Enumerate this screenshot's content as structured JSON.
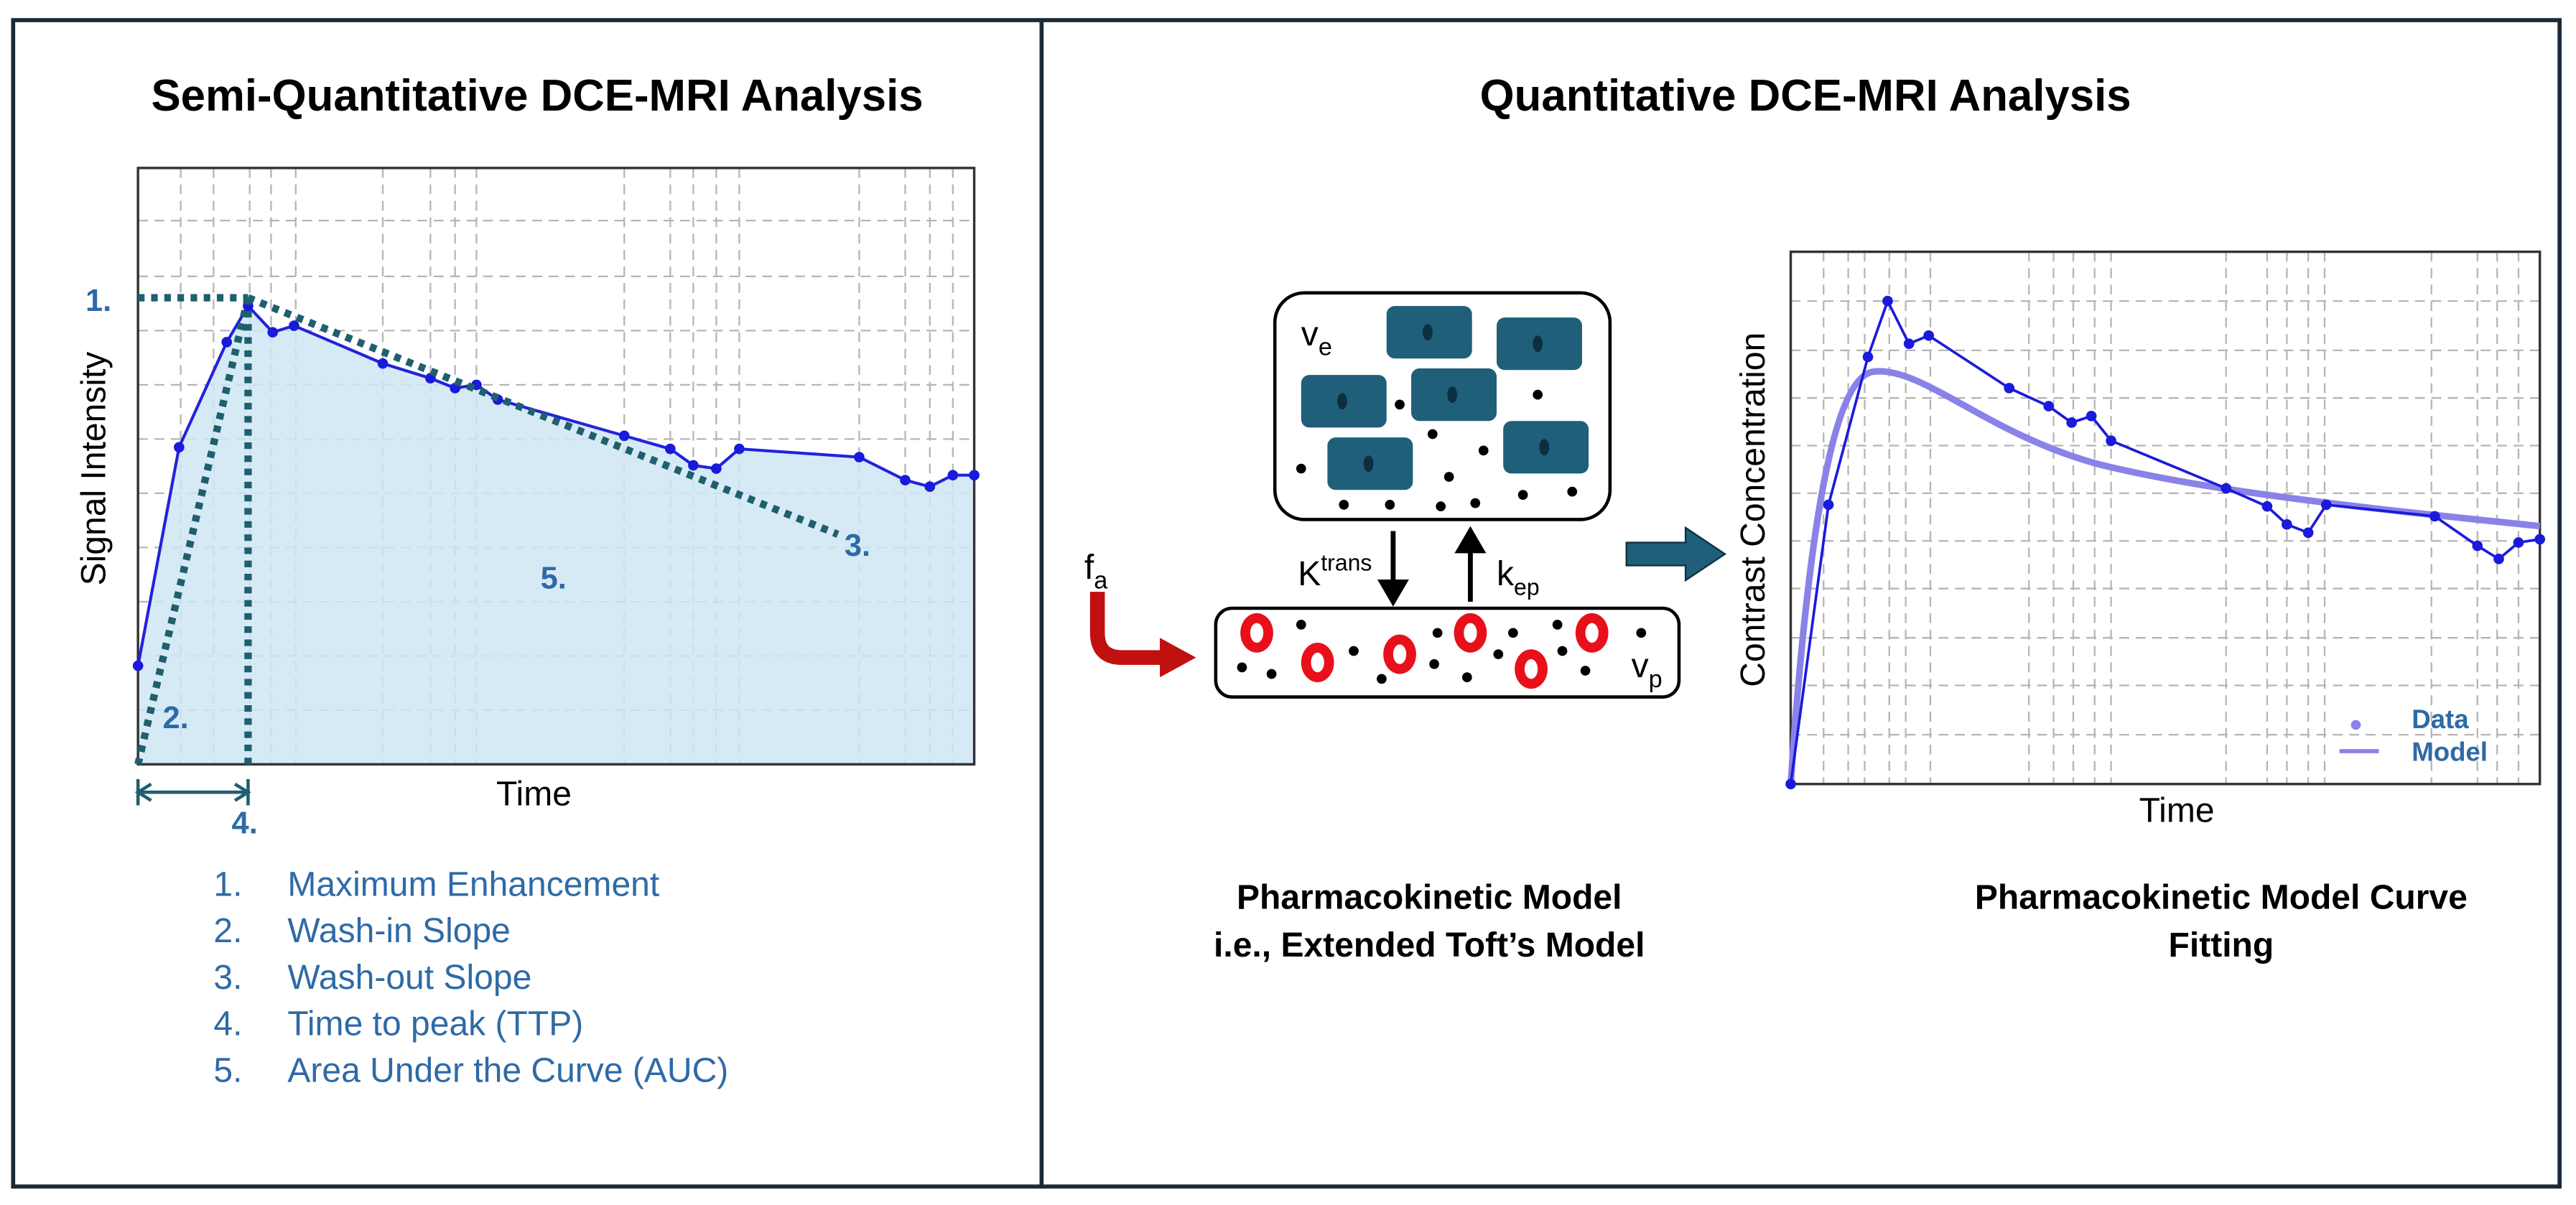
{
  "left_panel": {
    "title": "Semi-Quantitative DCE-MRI Analysis",
    "y_axis_label": "Signal Intensity",
    "x_axis_label": "Time",
    "annotations": [
      "1.",
      "2.",
      "3.",
      "4.",
      "5."
    ],
    "legend": [
      {
        "number": "1.",
        "text": "Maximum Enhancement"
      },
      {
        "number": "2.",
        "text": "Wash-in Slope"
      },
      {
        "number": "3.",
        "text": "Wash-out Slope"
      },
      {
        "number": "4.",
        "text": "Time to peak (TTP)"
      },
      {
        "number": "5.",
        "text": "Area Under the Curve (AUC)"
      }
    ]
  },
  "right_panel": {
    "title": "Quantitative DCE-MRI Analysis",
    "model_labels": {
      "ve": {
        "base": "v",
        "sub": "e"
      },
      "ktrans": {
        "base": "K",
        "sup": "trans"
      },
      "kep": {
        "base": "k",
        "sub": "ep"
      },
      "fa": {
        "base": "f",
        "sub": "a"
      },
      "vp": {
        "base": "v",
        "sub": "p"
      }
    },
    "model_caption": [
      "Pharmacokinetic Model",
      "i.e., Extended Toft’s Model"
    ],
    "chart": {
      "y_axis_label": "Contrast Concentration",
      "x_axis_label": "Time",
      "legend": [
        "Data",
        "Model"
      ]
    },
    "chart_caption": [
      "Pharmacokinetic Model Curve",
      "Fitting"
    ]
  }
}
